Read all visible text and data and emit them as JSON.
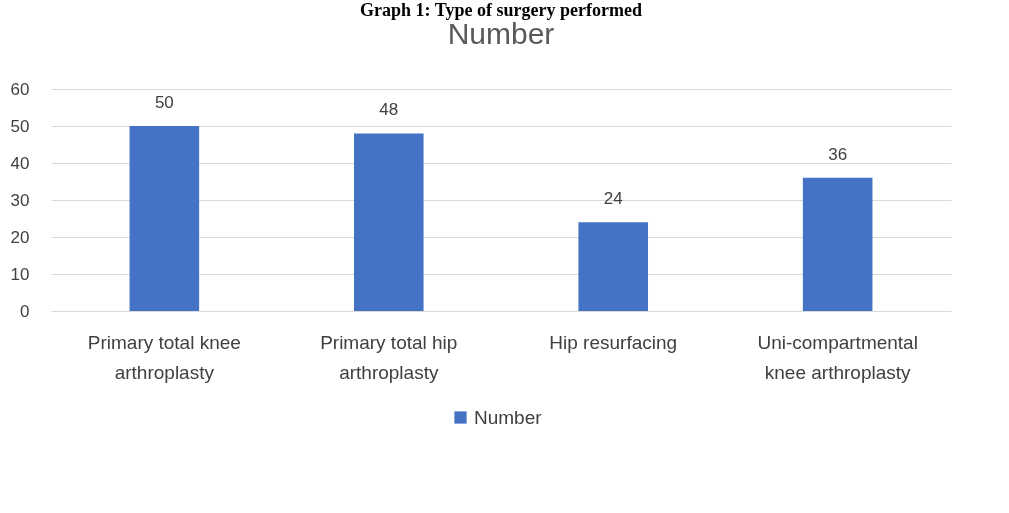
{
  "chart_data": {
    "type": "bar",
    "title": "Number",
    "annotations": [
      "Graph 1: Type of surgery performed"
    ],
    "categories": [
      "Primary total knee arthroplasty",
      "Primary total hip arthroplasty",
      "Hip resurfacing",
      "Uni-compartmental knee arthroplasty"
    ],
    "series": [
      {
        "name": "Number",
        "color": "#4472c4",
        "values": [
          50,
          48,
          24,
          36
        ]
      }
    ],
    "ylim": [
      0,
      60
    ],
    "yticks": [
      0,
      10,
      20,
      30,
      40,
      50,
      60
    ],
    "grid": "y",
    "legend": "bottom",
    "data_labels": true
  }
}
